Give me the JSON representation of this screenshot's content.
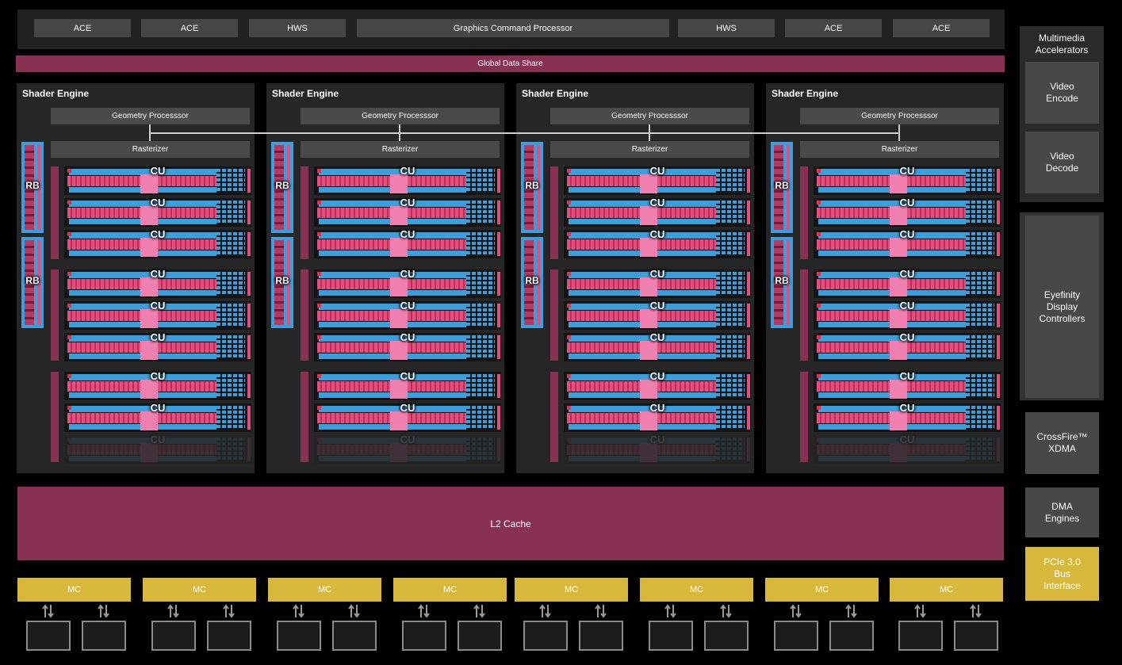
{
  "top": {
    "boxes": [
      "ACE",
      "ACE",
      "HWS",
      "Graphics Command Processor",
      "HWS",
      "ACE",
      "ACE"
    ],
    "global_data_share": "Global Data Share"
  },
  "shader_engines": [
    {
      "title": "Shader Engine",
      "geometry": "Geometry Processsor",
      "rasterizer": "Rasterizer",
      "rb_label": "RB",
      "cu_label": "CU"
    },
    {
      "title": "Shader Engine",
      "geometry": "Geometry Processsor",
      "rasterizer": "Rasterizer",
      "rb_label": "RB",
      "cu_label": "CU"
    },
    {
      "title": "Shader Engine",
      "geometry": "Geometry Processsor",
      "rasterizer": "Rasterizer",
      "rb_label": "RB",
      "cu_label": "CU"
    },
    {
      "title": "Shader Engine",
      "geometry": "Geometry Processsor",
      "rasterizer": "Rasterizer",
      "rb_label": "RB",
      "cu_label": "CU"
    }
  ],
  "l2_cache": "L2 Cache",
  "memory_controllers": [
    "MC",
    "MC",
    "MC",
    "MC",
    "MC",
    "MC",
    "MC",
    "MC"
  ],
  "sidebar": {
    "multimedia_title": "Multimedia Accelerators",
    "video_encode": "Video Encode",
    "video_decode": "Video Decode",
    "eyefinity": "Eyefinity Display Controllers",
    "crossfire": "CrossFire™ XDMA",
    "dma": "DMA Engines",
    "pcie": "PCIe 3.0 Bus Interface"
  },
  "colors": {
    "maroon": "#883152",
    "blue": "#3a9fdc",
    "pink": "#e04f7e",
    "gold": "#d8b83a"
  }
}
